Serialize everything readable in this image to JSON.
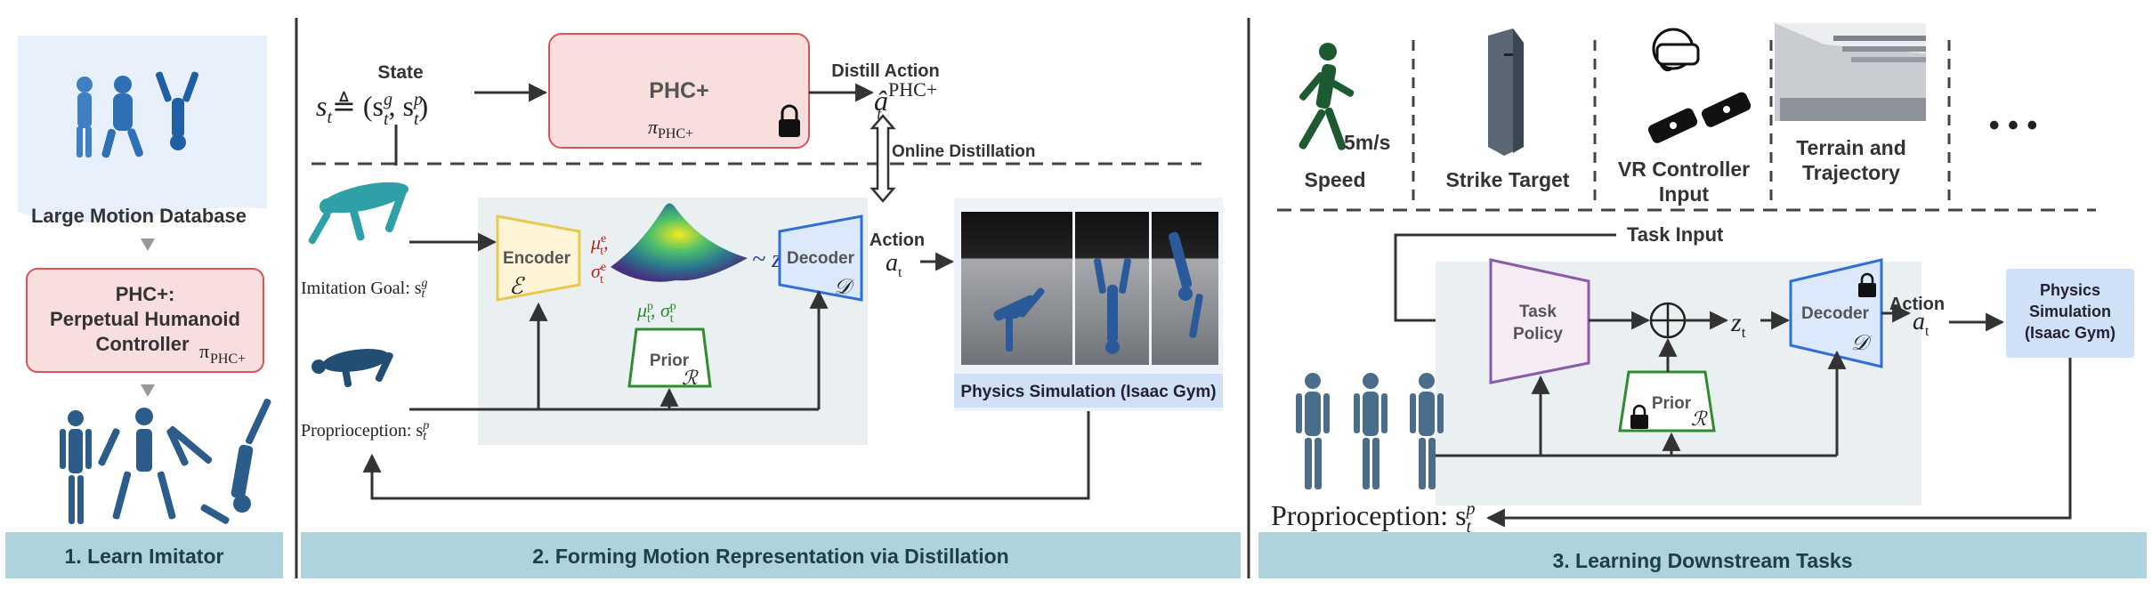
{
  "panel1": {
    "database_label": "Large Motion Database",
    "phc_line1": "PHC+:",
    "phc_line2": "Perpetual Humanoid",
    "phc_line3": "Controller",
    "phc_pi": "π",
    "phc_pi_sub": "PHC+",
    "footer": "1.  Learn Imitator"
  },
  "panel2": {
    "state_label": "State",
    "state_formula": "s",
    "state_rhs": "≜ (s",
    "phc_box_title": "PHC+",
    "phc_box_pi": "π",
    "phc_box_pi_sub": "PHC+",
    "distill_action": "Distill Action",
    "distill_a": "â",
    "distill_sup": "PHC+",
    "distill_sub": "t",
    "online_distillation": "Online Distillation",
    "imitation_goal": "Imitation Goal: s",
    "proprioception": "Proprioception: s",
    "encoder": "Encoder",
    "encoder_sym": "ℰ",
    "mu_e": "μ",
    "sigma_e": "σ",
    "mu_p": "μ",
    "sigma_p": "σ",
    "tilde_z": "~ z",
    "decoder": "Decoder",
    "decoder_sym": "𝒟",
    "prior": "Prior",
    "prior_sym": "ℛ",
    "action": "Action",
    "a_t": "a",
    "physics_sim": "Physics Simulation (Isaac Gym)",
    "footer": "2. Forming Motion Representation via Distillation"
  },
  "panel3": {
    "speed_value": "5m/s",
    "speed_label": "Speed",
    "strike_label": "Strike Target",
    "vr_line1": "VR Controller",
    "vr_line2": "Input",
    "terrain_line1": "Terrain and",
    "terrain_line2": "Trajectory",
    "ellipsis": "• • •",
    "task_input": "Task Input",
    "task_policy_line1": "Task",
    "task_policy_line2": "Policy",
    "z_t": "z",
    "decoder": "Decoder",
    "decoder_sym": "𝒟",
    "prior": "Prior",
    "prior_sym": "ℛ",
    "action": "Action",
    "a_t": "a",
    "physics_line1": "Physics",
    "physics_line2": "Simulation",
    "physics_line3": "(Isaac Gym)",
    "proprioception": "Proprioception: s",
    "footer": "3. Learning Downstream Tasks"
  },
  "colors": {
    "footer_bg": "#aed3dc",
    "pink_box": "#f9dede",
    "pink_border": "#d9555b",
    "latent_bg": "#eaf0f2",
    "encoder_fill": "#fff4d6",
    "encoder_border": "#e9c84f",
    "decoder_fill": "#dce8fb",
    "decoder_border": "#2f6fd6",
    "prior_border": "#2e8b2e",
    "task_border": "#8c5aa8",
    "physics_bg": "#cfe0f7"
  }
}
